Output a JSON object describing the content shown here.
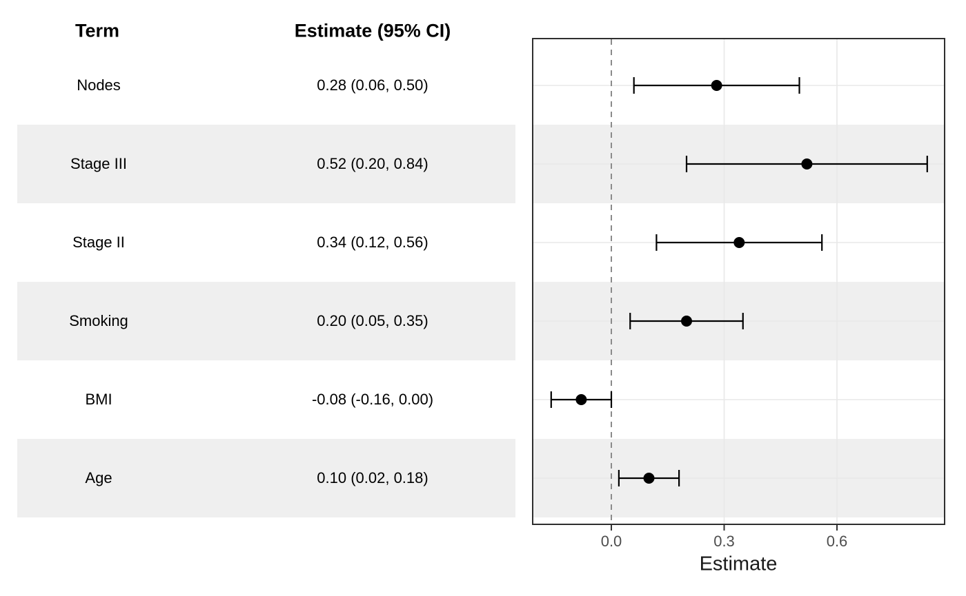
{
  "figure": {
    "kind": "forest-plot"
  },
  "table": {
    "headers": {
      "term": "Term",
      "estimate": "Estimate (95% CI)"
    }
  },
  "chart_data": {
    "type": "scatter",
    "subtype": "forest-plot-with-error-bars",
    "title": "",
    "xlabel": "Estimate",
    "ylabel": "",
    "categories": [
      "Nodes",
      "Stage III",
      "Stage II",
      "Smoking",
      "BMI",
      "Age"
    ],
    "rows": [
      {
        "term": "Nodes",
        "estimate": 0.28,
        "ci_lower": 0.06,
        "ci_upper": 0.5,
        "ci_label": "0.28 (0.06, 0.50)",
        "striped": false
      },
      {
        "term": "Stage III",
        "estimate": 0.52,
        "ci_lower": 0.2,
        "ci_upper": 0.84,
        "ci_label": "0.52 (0.20, 0.84)",
        "striped": true
      },
      {
        "term": "Stage II",
        "estimate": 0.34,
        "ci_lower": 0.12,
        "ci_upper": 0.56,
        "ci_label": "0.34 (0.12, 0.56)",
        "striped": false
      },
      {
        "term": "Smoking",
        "estimate": 0.2,
        "ci_lower": 0.05,
        "ci_upper": 0.35,
        "ci_label": "0.20 (0.05, 0.35)",
        "striped": true
      },
      {
        "term": "BMI",
        "estimate": -0.08,
        "ci_lower": -0.16,
        "ci_upper": 0.0,
        "ci_label": "-0.08 (-0.16, 0.00)",
        "striped": false
      },
      {
        "term": "Age",
        "estimate": 0.1,
        "ci_lower": 0.02,
        "ci_upper": 0.18,
        "ci_label": "0.10 (0.02, 0.18)",
        "striped": true
      }
    ],
    "x_ticks": {
      "values": [
        0.0,
        0.3,
        0.6
      ],
      "labels": [
        "0.0",
        "0.3",
        "0.6"
      ]
    },
    "xlim": [
      -0.211,
      0.889
    ],
    "reference_line_x": 0.0,
    "grid": "major-only",
    "legend": "none"
  },
  "colors": {
    "stripe": "#efefef",
    "gridline": "#e8e8e8",
    "panel_border": "#2e2e2e",
    "reference_line": "#8a8a8a",
    "marker": "#000000",
    "tick_mark": "#333333",
    "tick_text": "#4d4d4d",
    "axis_title_text": "#1a1a1a",
    "table_text": "#000000"
  }
}
